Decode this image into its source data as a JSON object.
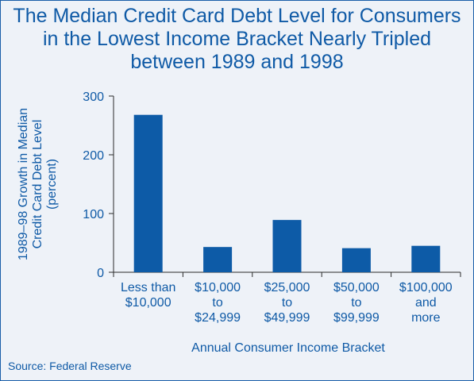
{
  "title_lines": [
    "The Median Credit Card Debt Level for Consumers",
    "in the Lowest Income Bracket Nearly Tripled",
    "between 1989 and 1998"
  ],
  "source": "Source: Federal Reserve",
  "colors": {
    "bar": "#0d5ba7",
    "text": "#0f5aa6",
    "background": "#eef2f8"
  },
  "chart_data": {
    "type": "bar",
    "title": "The Median Credit Card Debt Level for Consumers in the Lowest Income Bracket Nearly Tripled between 1989 and 1998",
    "xlabel": "Annual Consumer Income Bracket",
    "ylabel_lines": [
      "1989–98 Growth in Median",
      "Credit Card Debt Level",
      "(percent)"
    ],
    "categories": [
      [
        "Less than",
        "$10,000"
      ],
      [
        "$10,000",
        "to",
        "$24,999"
      ],
      [
        "$25,000",
        "to",
        "$49,999"
      ],
      [
        "$50,000",
        "to",
        "$99,999"
      ],
      [
        "$100,000",
        "and",
        "more"
      ]
    ],
    "values": [
      268,
      43,
      89,
      41,
      45
    ],
    "yticks": [
      0,
      100,
      200,
      300
    ],
    "ylim": [
      0,
      300
    ],
    "grid": false,
    "legend": "none"
  }
}
